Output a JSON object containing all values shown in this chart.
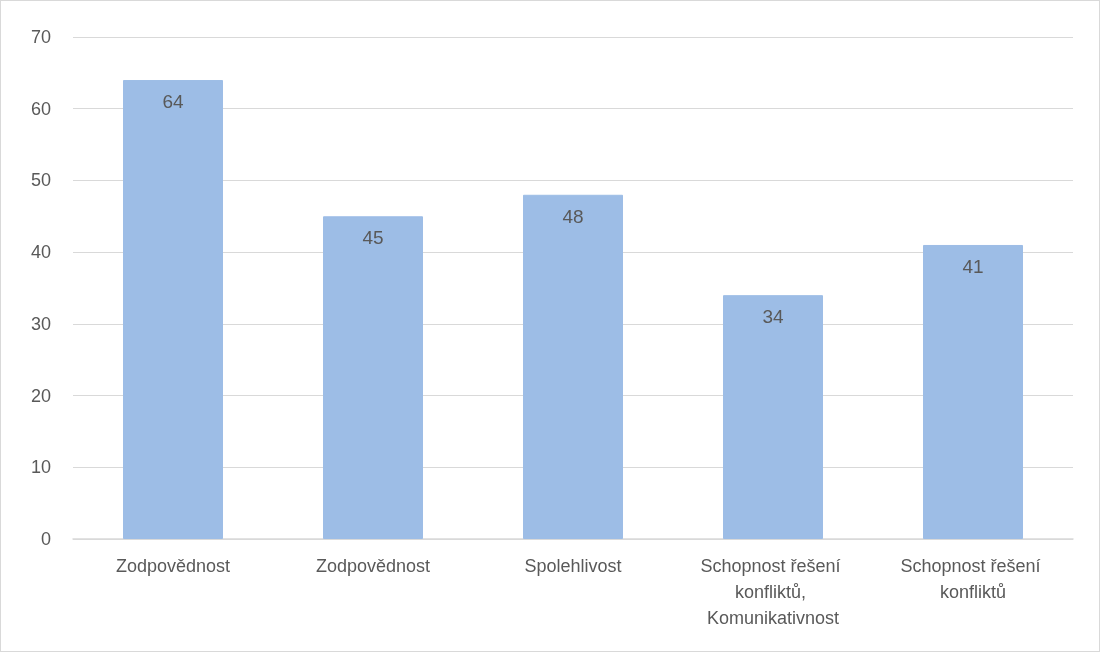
{
  "chart_data": {
    "type": "bar",
    "categories": [
      "Zodpovědnost",
      "Zodpovědnost",
      "Spolehlivost",
      "Schopnost řešení konfliktů, Komunikativnost",
      "Schopnost řešení konfliktů"
    ],
    "values": [
      64,
      45,
      48,
      34,
      41
    ],
    "color": "#9dbde6",
    "ylim": [
      0,
      70
    ],
    "yticks": [
      0,
      10,
      20,
      30,
      40,
      50,
      60,
      70
    ],
    "grid": "y",
    "data_labels": true
  }
}
